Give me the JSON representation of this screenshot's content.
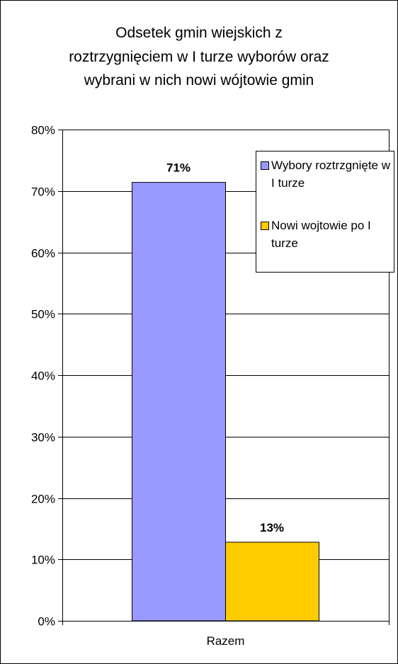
{
  "chart_data": {
    "type": "bar",
    "title_lines": [
      "Odsetek gmin wiejskich  z",
      "roztrzygnięciem w I turze wyborów oraz",
      "wybrani w nich nowi wójtowie gmin"
    ],
    "categories": [
      "Razem"
    ],
    "series": [
      {
        "name": "Wybory roztrzgnięte w I turze",
        "values": [
          71.4
        ],
        "label": "71%",
        "color": "#9999ff"
      },
      {
        "name": "Nowi wojtowie po I turze",
        "values": [
          12.8
        ],
        "label": "13%",
        "color": "#ffcc00"
      }
    ],
    "ylim": [
      0,
      80
    ],
    "yticks": [
      0,
      10,
      20,
      30,
      40,
      50,
      60,
      70,
      80
    ],
    "ytick_labels": [
      "0%",
      "10%",
      "20%",
      "30%",
      "40%",
      "50%",
      "60%",
      "70%",
      "80%"
    ],
    "grid": true,
    "legend_position": "top-right",
    "xlabel": "",
    "ylabel": ""
  }
}
